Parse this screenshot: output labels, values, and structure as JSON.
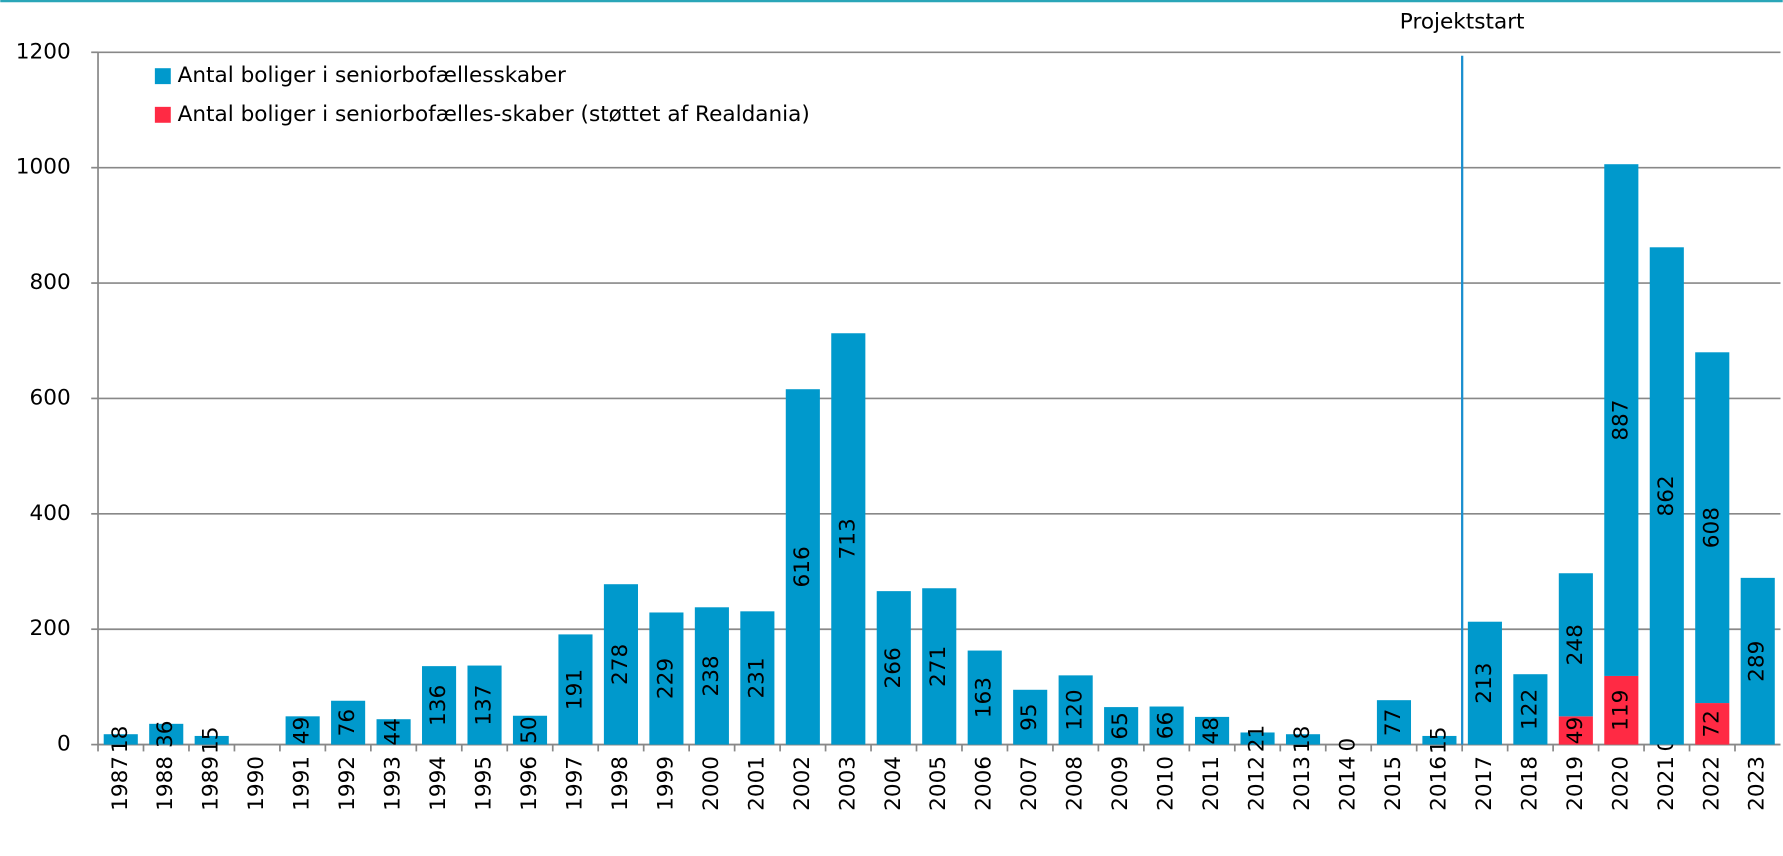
{
  "chart_data": {
    "type": "stacked-bar",
    "categories": [
      "1987",
      "1988",
      "1989",
      "1990",
      "1991",
      "1992",
      "1993",
      "1994",
      "1995",
      "1996",
      "1997",
      "1998",
      "1999",
      "2000",
      "2001",
      "2002",
      "2003",
      "2004",
      "2005",
      "2006",
      "2007",
      "2008",
      "2009",
      "2010",
      "2011",
      "2012",
      "2013",
      "2014",
      "2015",
      "2016",
      "2017",
      "2018",
      "2019",
      "2020",
      "2021",
      "2022",
      "2023"
    ],
    "series": [
      {
        "name": "Antal boliger i seniorbofællesskaber",
        "color": "#0099cc",
        "values": [
          18,
          36,
          15,
          null,
          49,
          76,
          44,
          136,
          137,
          50,
          191,
          278,
          229,
          238,
          231,
          616,
          713,
          266,
          271,
          163,
          95,
          120,
          65,
          66,
          48,
          21,
          18,
          0,
          77,
          15,
          213,
          122,
          248,
          887,
          862,
          608,
          289
        ]
      },
      {
        "name": "Antal boliger i seniorbofælles-skaber (støttet af Realdania)",
        "color": "#ff2a44",
        "values": [
          null,
          null,
          null,
          null,
          null,
          null,
          null,
          null,
          null,
          null,
          null,
          null,
          null,
          null,
          null,
          null,
          null,
          null,
          null,
          null,
          null,
          null,
          null,
          null,
          null,
          null,
          null,
          null,
          null,
          null,
          null,
          null,
          49,
          119,
          0,
          72,
          null
        ]
      }
    ],
    "ylim": [
      0,
      1200
    ],
    "yticks": [
      0,
      200,
      400,
      600,
      800,
      1000,
      1200
    ],
    "grid": true,
    "annotation": "Projektstart",
    "legend": "top-left"
  }
}
